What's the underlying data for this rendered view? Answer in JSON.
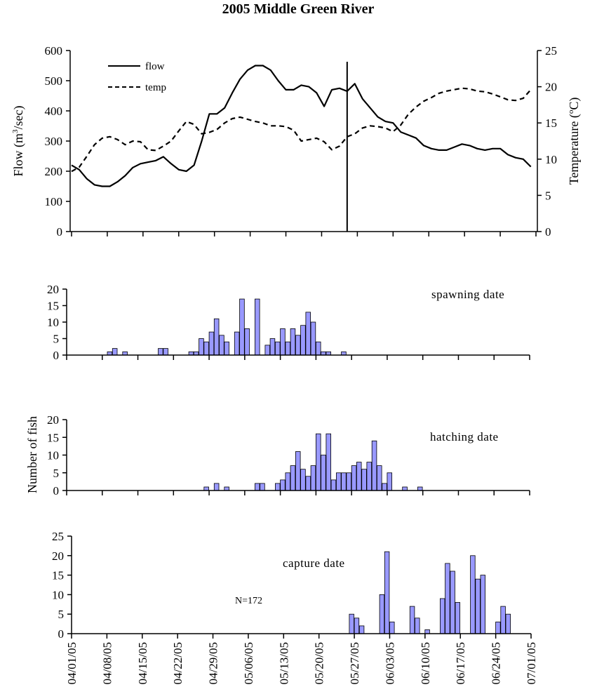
{
  "chart_data": [
    {
      "type": "line",
      "title": "2005 Middle Green River",
      "ylabel": "Flow (m³/sec)",
      "y2label": "Temperature (ºC)",
      "ylim": [
        0,
        600
      ],
      "y2lim": [
        0,
        25
      ],
      "yticks": [
        "0",
        "100",
        "200",
        "300",
        "400",
        "500",
        "600"
      ],
      "y2ticks": [
        "0",
        "5",
        "10",
        "15",
        "20",
        "25"
      ],
      "xlim": [
        0,
        91
      ],
      "grid": false,
      "legend_position": "top-left",
      "vline_day": 54,
      "series": [
        {
          "name": "flow",
          "style": "solid",
          "axis": "left",
          "x": [
            0,
            1.5,
            3,
            4.5,
            6,
            7.5,
            9,
            10.5,
            12,
            13.5,
            15,
            16.5,
            18,
            19.5,
            21,
            22.5,
            24,
            25.5,
            27,
            28.5,
            30,
            31.5,
            33,
            34.5,
            36,
            37.5,
            39,
            40.5,
            42,
            43.5,
            45,
            46.5,
            48,
            49.5,
            51,
            52.5,
            54,
            55.5,
            57,
            58.5,
            60,
            61.5,
            63,
            64.5,
            66,
            67.5,
            69,
            70.5,
            72,
            73.5,
            75,
            76.5,
            78,
            79.5,
            81,
            82.5,
            84,
            85.5,
            87,
            88.5,
            90
          ],
          "values": [
            220,
            205,
            175,
            155,
            150,
            150,
            165,
            185,
            212,
            225,
            230,
            235,
            248,
            225,
            205,
            200,
            220,
            300,
            390,
            390,
            410,
            460,
            505,
            535,
            550,
            550,
            535,
            500,
            470,
            470,
            485,
            480,
            460,
            415,
            470,
            475,
            465,
            490,
            440,
            410,
            380,
            365,
            360,
            330,
            320,
            310,
            285,
            275,
            270,
            270,
            280,
            290,
            285,
            275,
            270,
            275,
            275,
            255,
            245,
            240,
            215
          ]
        },
        {
          "name": "temp",
          "style": "dashed",
          "axis": "right",
          "x": [
            0,
            1.5,
            3,
            4.5,
            6,
            7.5,
            9,
            10.5,
            12,
            13.5,
            15,
            16.5,
            18,
            19.5,
            21,
            22.5,
            24,
            25.5,
            27,
            28.5,
            30,
            31.5,
            33,
            34.5,
            36,
            37.5,
            39,
            40.5,
            42,
            43.5,
            45,
            46.5,
            48,
            49.5,
            51,
            52.5,
            54,
            55.5,
            57,
            58.5,
            60,
            61.5,
            63,
            64.5,
            66,
            67.5,
            69,
            70.5,
            72,
            73.5,
            75,
            76.5,
            78,
            79.5,
            81,
            82.5,
            84,
            85.5,
            87,
            88.5,
            90
          ],
          "values": [
            8.3,
            8.9,
            10.4,
            12.0,
            12.9,
            13.1,
            12.7,
            12.0,
            12.5,
            12.4,
            11.3,
            11.2,
            11.8,
            12.5,
            13.9,
            15.2,
            14.8,
            13.5,
            13.7,
            14.1,
            15.0,
            15.6,
            15.8,
            15.5,
            15.2,
            15.0,
            14.6,
            14.6,
            14.5,
            14.0,
            12.5,
            12.7,
            12.9,
            12.4,
            11.3,
            11.8,
            13.1,
            13.5,
            14.3,
            14.6,
            14.5,
            14.3,
            13.8,
            14.7,
            16.2,
            17.2,
            18.0,
            18.5,
            19.1,
            19.4,
            19.6,
            19.8,
            19.7,
            19.4,
            19.3,
            19.0,
            18.6,
            18.2,
            18.1,
            18.4,
            19.6
          ]
        }
      ]
    },
    {
      "type": "bar",
      "annotation": "spawning date",
      "ylim": [
        0,
        20
      ],
      "yticks": [
        "0",
        "5",
        "10",
        "15",
        "20"
      ],
      "xlim": [
        0,
        91
      ],
      "x": [
        9,
        10,
        12,
        19,
        20,
        25,
        26,
        27,
        28,
        29,
        30,
        31,
        32,
        34,
        35,
        36,
        38,
        40,
        41,
        42,
        43,
        44,
        45,
        46,
        47,
        48,
        49,
        50,
        51,
        52,
        55
      ],
      "values": [
        1,
        2,
        1,
        2,
        2,
        1,
        1,
        5,
        4,
        7,
        11,
        6,
        4,
        7,
        17,
        8,
        17,
        3,
        5,
        4,
        8,
        4,
        8,
        6,
        9,
        13,
        10,
        4,
        1,
        1,
        1
      ]
    },
    {
      "type": "bar",
      "ylabel": "Number of fish",
      "annotation": "hatching date",
      "ylim": [
        0,
        20
      ],
      "yticks": [
        "0",
        "5",
        "10",
        "15",
        "20"
      ],
      "xlim": [
        0,
        91
      ],
      "x": [
        28,
        30,
        32,
        38,
        39,
        42,
        43,
        44,
        45,
        46,
        47,
        48,
        49,
        50,
        51,
        52,
        53,
        54,
        55,
        56,
        57,
        58,
        59,
        60,
        61,
        62,
        63,
        64,
        67,
        70
      ],
      "values": [
        1,
        2,
        1,
        2,
        2,
        2,
        3,
        5,
        7,
        11,
        6,
        4,
        7,
        16,
        10,
        16,
        3,
        5,
        5,
        5,
        7,
        8,
        6,
        8,
        14,
        7,
        2,
        5,
        1,
        1
      ]
    },
    {
      "type": "bar",
      "annotation": "capture date",
      "note": "N=172",
      "ylim": [
        0,
        25
      ],
      "yticks": [
        "0",
        "5",
        "10",
        "15",
        "20",
        "25"
      ],
      "xlim": [
        0,
        91
      ],
      "xticks": [
        "04/01/05",
        "04/08/05",
        "04/15/05",
        "04/22/05",
        "04/29/05",
        "05/06/05",
        "05/13/05",
        "05/20/05",
        "05/27/05",
        "06/03/05",
        "06/10/05",
        "06/17/05",
        "06/24/05",
        "07/01/05"
      ],
      "x": [
        56,
        57,
        58,
        62,
        63,
        64,
        68,
        69,
        71,
        74,
        75,
        76,
        77,
        80,
        81,
        82,
        85,
        86,
        87,
        90,
        91,
        92
      ],
      "values": [
        5,
        4,
        2,
        10,
        21,
        3,
        7,
        4,
        1,
        9,
        18,
        16,
        8,
        20,
        14,
        15,
        3,
        7,
        5,
        0,
        0,
        0
      ]
    }
  ]
}
